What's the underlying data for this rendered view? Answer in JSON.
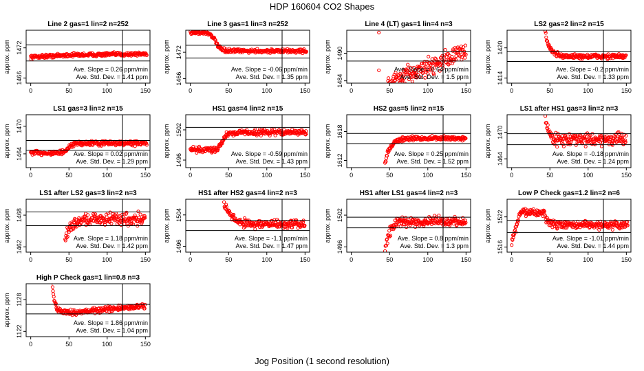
{
  "title": "HDP  160604  CO2 Shapes",
  "xlabel": "Jog Position (1 second resolution)",
  "ylabel": "approx. ppm",
  "stat_slope_label": "Ave. Slope =",
  "stat_std_label": "Ave. Std. Dev. =",
  "slope_unit": "ppm/min",
  "std_unit": "ppm",
  "colors": {
    "points": "#ff0000",
    "lines": "#000000"
  },
  "chart_data": [
    {
      "type": "scatter",
      "title": "Line 2 gas=1 lin=2 n=252",
      "x_ticks": [
        "0",
        "50",
        "100",
        "150"
      ],
      "y_ticks": [
        "1466",
        "1472"
      ],
      "ylim": [
        1465,
        1475.5
      ],
      "hlines": [
        1469.4,
        1472.6
      ],
      "vline": 120,
      "slope": "0.26",
      "std": "1.41",
      "series": [
        {
          "shape": "flat",
          "start": 0,
          "end": 152,
          "levels": [
            1470.2,
            1470.6,
            1470.8
          ],
          "noise": 0.25
        }
      ]
    },
    {
      "type": "scatter",
      "title": "Line 3 gas=1 lin=3 n=252",
      "x_ticks": [
        "0",
        "50",
        "100",
        "150"
      ],
      "y_ticks": [
        "1466",
        "1472"
      ],
      "ylim": [
        1465,
        1477
      ],
      "hlines": [
        1470.7,
        1473.6
      ],
      "vline": 120,
      "slope": "-0.06",
      "std": "1.35",
      "series": [
        {
          "shape": "sigmoid",
          "start": 0,
          "end": 152,
          "levels": [
            1476.5,
            1472.3
          ],
          "mid": 33,
          "noise": 0.3
        }
      ]
    },
    {
      "type": "scatter",
      "title": "Line 4 (LT) gas=1 lin=4 n=3",
      "x_ticks": [
        "0",
        "50",
        "100",
        "150"
      ],
      "y_ticks": [
        "1484",
        "1490"
      ],
      "ylim": [
        1483.5,
        1495
      ],
      "hlines": [
        1488.3,
        1490.4
      ],
      "vline": 120,
      "slope": "0.64",
      "std": "1.5",
      "series": [
        {
          "shape": "ramp",
          "start": 48,
          "end": 150,
          "levels": [
            1483.5,
            1490.5
          ],
          "noise": 1.3
        },
        {
          "shape": "points",
          "pts": [
            [
              36,
              1494.5
            ],
            [
              36,
              1486.3
            ]
          ]
        }
      ]
    },
    {
      "type": "scatter",
      "title": "LS2 gas=2 lin=2 n=15",
      "x_ticks": [
        "0",
        "50",
        "100",
        "150"
      ],
      "y_ticks": [
        "1414",
        "1420"
      ],
      "ylim": [
        1413,
        1423.5
      ],
      "hlines": [
        1417.3,
        1419.3
      ],
      "vline": 120,
      "slope": "-0.2",
      "std": "1.33",
      "series": [
        {
          "shape": "decay",
          "start": 44,
          "end": 150,
          "levels": [
            1423,
            1418.3
          ],
          "tau": 6,
          "noise": 0.35
        }
      ]
    },
    {
      "type": "scatter",
      "title": "LS1 gas=3 lin=2 n=15",
      "x_ticks": [
        "0",
        "50",
        "100",
        "150"
      ],
      "y_ticks": [
        "1464",
        "1470"
      ],
      "ylim": [
        1461,
        1472.5
      ],
      "hlines": [
        1464.8,
        1466.9
      ],
      "vline": 120,
      "slope": "0.02",
      "std": "1.29",
      "series": [
        {
          "shape": "sigmoid",
          "start": 0,
          "end": 152,
          "levels": [
            1464.2,
            1466.3
          ],
          "mid": 50,
          "noise": 0.35
        }
      ]
    },
    {
      "type": "scatter",
      "title": "HS1 gas=4 lin=2 n=15",
      "x_ticks": [
        "0",
        "50",
        "100",
        "150"
      ],
      "y_ticks": [
        "1496",
        "1502"
      ],
      "ylim": [
        1494.5,
        1505
      ],
      "hlines": [
        1500.1,
        1502.5
      ],
      "vline": 120,
      "slope": "-0.59",
      "std": "1.43",
      "series": [
        {
          "shape": "sigmoid",
          "start": 0,
          "end": 152,
          "levels": [
            1498,
            1501.5
          ],
          "mid": 42,
          "noise": 0.4
        }
      ]
    },
    {
      "type": "scatter",
      "title": "HS2 gas=5 lin=2 n=15",
      "x_ticks": [
        "0",
        "50",
        "100",
        "150"
      ],
      "y_ticks": [
        "1612",
        "1618"
      ],
      "ylim": [
        1610.5,
        1621.5
      ],
      "hlines": [
        1615.5,
        1617.6
      ],
      "vline": 120,
      "slope": "0.25",
      "std": "1.52",
      "series": [
        {
          "shape": "decay",
          "start": 44,
          "end": 150,
          "levels": [
            1611.5,
            1616.6
          ],
          "tau": 7,
          "noise": 0.3
        }
      ]
    },
    {
      "type": "scatter",
      "title": "LS1 after HS1 gas=3 lin=2 n=3",
      "x_ticks": [
        "0",
        "50",
        "100",
        "150"
      ],
      "y_ticks": [
        "1464",
        "1470"
      ],
      "ylim": [
        1462,
        1474
      ],
      "hlines": [
        1467.2,
        1469.7
      ],
      "vline": 120,
      "slope": "-0.18",
      "std": "1.24",
      "series": [
        {
          "shape": "decay",
          "start": 44,
          "end": 150,
          "levels": [
            1473.5,
            1468.4
          ],
          "tau": 4,
          "noise": 0.9
        }
      ]
    },
    {
      "type": "scatter",
      "title": "LS1 after LS2 gas=3 lin=2 n=3",
      "x_ticks": [
        "0",
        "50",
        "100",
        "150"
      ],
      "y_ticks": [
        "1462",
        "1468"
      ],
      "ylim": [
        1461,
        1471
      ],
      "hlines": [
        1466,
        1468.6
      ],
      "vline": 120,
      "slope": "1.18",
      "std": "1.42",
      "series": [
        {
          "shape": "decay",
          "start": 45,
          "end": 150,
          "levels": [
            1463.5,
            1467.3
          ],
          "tau": 8,
          "noise": 0.8
        }
      ]
    },
    {
      "type": "scatter",
      "title": "HS1 after HS2 gas=4 lin=2 n=3",
      "x_ticks": [
        "0",
        "50",
        "100",
        "150"
      ],
      "y_ticks": [
        "1496",
        "1504"
      ],
      "ylim": [
        1494.5,
        1508
      ],
      "hlines": [
        1500,
        1502.6
      ],
      "vline": 120,
      "slope": "-1.1",
      "std": "1.47",
      "series": [
        {
          "shape": "decay",
          "start": 44,
          "end": 150,
          "levels": [
            1507,
            1501.6
          ],
          "tau": 10,
          "noise": 0.8
        }
      ]
    },
    {
      "type": "scatter",
      "title": "HS1 after LS1 gas=4 lin=2 n=3",
      "x_ticks": [
        "0",
        "50",
        "100",
        "150"
      ],
      "y_ticks": [
        "1496",
        "1502"
      ],
      "ylim": [
        1495,
        1505
      ],
      "hlines": [
        1499.6,
        1501.6
      ],
      "vline": 120,
      "slope": "0.8",
      "std": "1.3",
      "series": [
        {
          "shape": "decay",
          "start": 44,
          "end": 150,
          "levels": [
            1495.5,
            1500.8
          ],
          "tau": 6,
          "noise": 0.6
        }
      ]
    },
    {
      "type": "scatter",
      "title": "Low P Check gas=1.2 lin=2 n=6",
      "x_ticks": [
        "0",
        "50",
        "100",
        "150"
      ],
      "y_ticks": [
        "1516",
        "1522"
      ],
      "ylim": [
        1515,
        1525.5
      ],
      "hlines": [
        1518.9,
        1521.3
      ],
      "vline": 120,
      "slope": "-1.01",
      "std": "1.44",
      "series": [
        {
          "shape": "hump",
          "start": 0,
          "end": 152,
          "levels": [
            1517,
            1523,
            1520.4
          ],
          "noise": 0.5
        }
      ]
    },
    {
      "type": "scatter",
      "title": "High P Check gas=1 lin=0.8 n=3",
      "x_ticks": [
        "0",
        "50",
        "100",
        "150"
      ],
      "y_ticks": [
        "1122",
        "1128"
      ],
      "ylim": [
        1121,
        1131
      ],
      "hlines": [
        1125.3,
        1127.1
      ],
      "vline": 120,
      "slope": "1.86",
      "std": "1.04",
      "series": [
        {
          "shape": "decay",
          "start": 28,
          "end": 150,
          "levels": [
            1131,
            1125.3
          ],
          "tau": 4,
          "noise": 0.35,
          "tail_slope": 0.012
        }
      ]
    }
  ]
}
